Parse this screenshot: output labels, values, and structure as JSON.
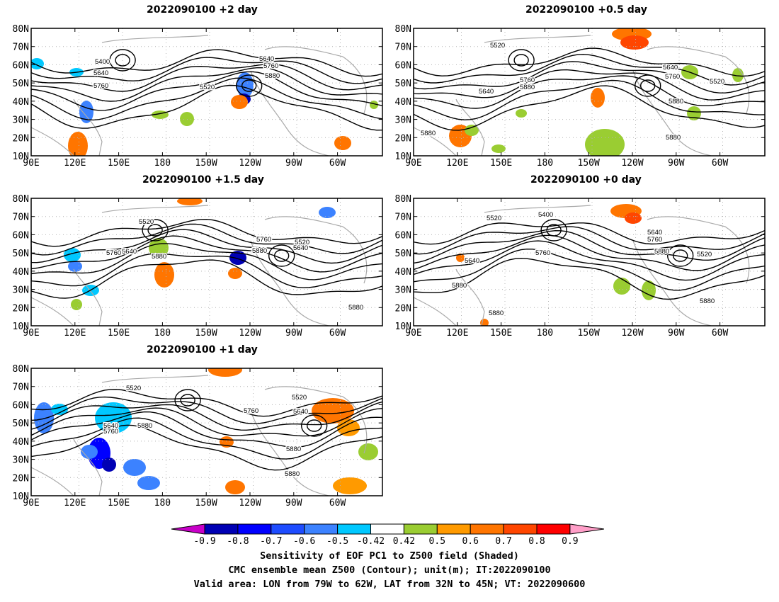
{
  "panels": [
    {
      "title": "2022090100 +2 day",
      "contour_labels": [
        "5400",
        "5640",
        "5760",
        "5520",
        "5640",
        "5760",
        "5880"
      ],
      "lat_ticks": [
        "80N",
        "70N",
        "60N",
        "50N",
        "40N",
        "30N",
        "20N",
        "10N"
      ],
      "lon_ticks": [
        "90E",
        "120E",
        "150E",
        "180",
        "150W",
        "120W",
        "90W",
        "60W"
      ]
    },
    {
      "title": "2022090100 +0.5 day",
      "contour_labels": [
        "5520",
        "5640",
        "5760",
        "5880",
        "5640",
        "5760",
        "5520",
        "5880",
        "5880",
        "5880"
      ],
      "lat_ticks": [
        "80N",
        "70N",
        "60N",
        "50N",
        "40N",
        "30N",
        "20N",
        "10N"
      ],
      "lon_ticks": [
        "90E",
        "120E",
        "150E",
        "180",
        "150W",
        "120W",
        "90W",
        "60W"
      ]
    },
    {
      "title": "2022090100 +1.5 day",
      "contour_labels": [
        "5520",
        "5760",
        "5640",
        "5880",
        "5760",
        "5520",
        "5880",
        "5640",
        "5880"
      ],
      "lat_ticks": [
        "80N",
        "70N",
        "60N",
        "50N",
        "40N",
        "30N",
        "20N",
        "10N"
      ],
      "lon_ticks": [
        "90E",
        "120E",
        "150E",
        "180",
        "150W",
        "120W",
        "90W",
        "60W"
      ]
    },
    {
      "title": "2022090100 +0 day",
      "contour_labels": [
        "5520",
        "5400",
        "5640",
        "5760",
        "5880",
        "5640",
        "5760",
        "5520",
        "5880",
        "5880",
        "5880"
      ],
      "lat_ticks": [
        "80N",
        "70N",
        "60N",
        "50N",
        "40N",
        "30N",
        "20N",
        "10N"
      ],
      "lon_ticks": [
        "90E",
        "120E",
        "150E",
        "180",
        "150W",
        "120W",
        "90W",
        "60W"
      ]
    },
    {
      "title": "2022090100 +1 day",
      "contour_labels": [
        "5520",
        "5640",
        "5760",
        "5880",
        "5760",
        "5520",
        "5640",
        "5880",
        "5880"
      ],
      "lat_ticks": [
        "80N",
        "70N",
        "60N",
        "50N",
        "40N",
        "30N",
        "20N",
        "10N"
      ],
      "lon_ticks": [
        "90E",
        "120E",
        "150E",
        "180",
        "150W",
        "120W",
        "90W",
        "60W"
      ]
    }
  ],
  "colorbar": {
    "ticks": [
      "-0.9",
      "-0.8",
      "-0.7",
      "-0.6",
      "-0.5",
      "-0.42",
      "0.42",
      "0.5",
      "0.6",
      "0.7",
      "0.8",
      "0.9"
    ],
    "colors": [
      "#0000b4",
      "#0000ff",
      "#1e4cff",
      "#3c82ff",
      "#00c8ff",
      "#ffffff",
      "#9acd32",
      "#ff9a00",
      "#ff7500",
      "#ff4600",
      "#ff0000"
    ],
    "low_color": "#c800c8",
    "high_color": "#ff9ec8"
  },
  "colors": {
    "contour": "#000000",
    "coast": "#aaaaaa",
    "grid": "#b4b4b4"
  },
  "footer": {
    "line1": "Sensitivity of EOF PC1 to Z500 field (Shaded)",
    "line2": "CMC ensemble mean Z500 (Contour); unit(m); IT:2022090100",
    "line3": "Valid area: LON from 79W to 62W, LAT from 32N to 45N; VT: 2022090600"
  }
}
